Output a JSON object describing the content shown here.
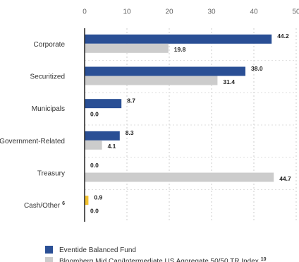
{
  "chart_data": {
    "type": "hbar",
    "categories": [
      "Corporate",
      "Securitized",
      "Municipals",
      "Government-Related",
      "Treasury",
      "Cash/Other"
    ],
    "category_footnotes": [
      null,
      null,
      null,
      null,
      null,
      "6"
    ],
    "series": [
      {
        "name": "Eventide Balanced Fund",
        "color": "#2a4f95",
        "colors": [
          "#2a4f95",
          "#2a4f95",
          "#2a4f95",
          "#2a4f95",
          "#2a4f95",
          "#f3c22f"
        ],
        "values": [
          44.2,
          38.0,
          8.7,
          8.3,
          0.0,
          0.9
        ],
        "value_labels": [
          "44.2",
          "38.0",
          "8.7",
          "8.3",
          "0.0",
          "0.9"
        ]
      },
      {
        "name": "Bloomberg Mid Cap/Intermediate US Aggregate 50/50 TR Index",
        "footnote": "10",
        "color": "#cccccc",
        "values": [
          19.8,
          31.4,
          0.0,
          4.1,
          44.7,
          0.0
        ],
        "value_labels": [
          "19.8",
          "31.4",
          "0.0",
          "4.1",
          "44.7",
          "0.0"
        ]
      }
    ],
    "xlim": [
      0,
      50
    ],
    "xticks": [
      0,
      10,
      20,
      30,
      40,
      50
    ],
    "grid": true
  }
}
